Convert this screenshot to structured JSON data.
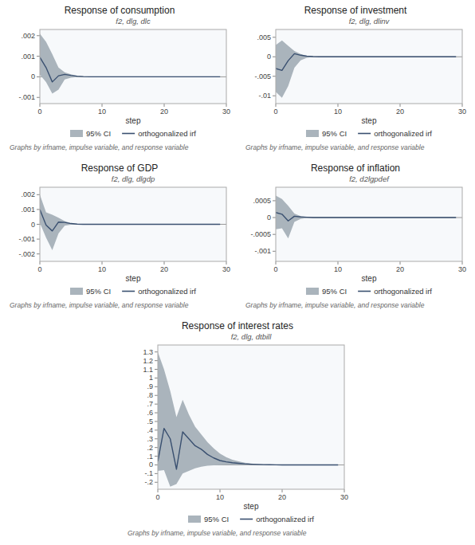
{
  "chart_data": [
    {
      "type": "line",
      "title": "Response of consumption",
      "subtitle": "f2, dlg, dlc",
      "x_label": "step",
      "footer": "Graphs by irfname, impulse variable, and response variable",
      "legend": "bottom",
      "grid": false,
      "x": [
        0,
        1,
        2,
        3,
        4,
        5,
        6,
        7,
        8,
        9,
        10,
        11,
        12,
        13,
        14,
        15,
        16,
        17,
        18,
        19,
        20,
        21,
        22,
        23,
        24,
        25,
        26,
        27,
        28,
        29
      ],
      "xlim": [
        0,
        30
      ],
      "xticks": [
        0,
        10,
        20,
        30
      ],
      "ylim": [
        -0.0013,
        0.0023
      ],
      "yticks": [
        {
          "value": -0.001,
          "label": "-.001"
        },
        0,
        {
          "value": 0.001,
          "label": ".001"
        },
        {
          "value": 0.002,
          "label": ".002"
        }
      ],
      "series": [
        {
          "name": "95% CI",
          "type": "band",
          "color": "#aab4bc",
          "upper": [
            0.0021,
            0.0017,
            0.0011,
            0.00045,
            0.00022,
            0.00012,
            5e-05,
            2e-05,
            1e-05,
            0.0,
            0.0,
            0.0,
            0.0,
            0.0,
            0.0,
            0.0,
            0.0,
            0.0,
            0.0,
            0.0,
            0.0,
            0.0,
            0.0,
            0.0,
            0.0,
            0.0,
            0.0,
            0.0,
            0.0,
            0.0
          ],
          "lower": [
            0.0001,
            -0.00025,
            -0.00082,
            -0.00062,
            -0.00013,
            -4e-05,
            -1e-05,
            0.0,
            0.0,
            0.0,
            0.0,
            0.0,
            0.0,
            0.0,
            0.0,
            0.0,
            0.0,
            0.0,
            0.0,
            0.0,
            0.0,
            0.0,
            0.0,
            0.0,
            0.0,
            0.0,
            0.0,
            0.0,
            0.0,
            0.0
          ]
        },
        {
          "name": "orthogonalized irf",
          "type": "line",
          "color": "#3a5070",
          "values": [
            0.00095,
            0.00045,
            -0.00025,
            5e-05,
            0.00012,
            7e-05,
            3e-05,
            1e-05,
            0.0,
            0.0,
            0.0,
            0.0,
            0.0,
            0.0,
            0.0,
            0.0,
            0.0,
            0.0,
            0.0,
            0.0,
            0.0,
            0.0,
            0.0,
            0.0,
            0.0,
            0.0,
            0.0,
            0.0,
            0.0,
            0.0
          ]
        }
      ]
    },
    {
      "type": "line",
      "title": "Response of investment",
      "subtitle": "f2, dlg, dlinv",
      "x_label": "step",
      "footer": "Graphs by irfname, impulse variable, and response variable",
      "legend": "bottom",
      "grid": false,
      "x": [
        0,
        1,
        2,
        3,
        4,
        5,
        6,
        7,
        8,
        9,
        10,
        11,
        12,
        13,
        14,
        15,
        16,
        17,
        18,
        19,
        20,
        21,
        22,
        23,
        24,
        25,
        26,
        27,
        28,
        29
      ],
      "xlim": [
        0,
        30
      ],
      "xticks": [
        0,
        10,
        20,
        30
      ],
      "ylim": [
        -0.012,
        0.007
      ],
      "yticks": [
        {
          "value": -0.01,
          "label": "-.01"
        },
        {
          "value": -0.005,
          "label": "-.005"
        },
        0,
        {
          "value": 0.005,
          "label": ".005"
        }
      ],
      "series": [
        {
          "name": "95% CI",
          "type": "band",
          "color": "#aab4bc",
          "upper": [
            0.003,
            0.0042,
            0.0028,
            0.0015,
            0.0007,
            0.0002,
            5e-05,
            0.0,
            0.0,
            0.0,
            0.0,
            0.0,
            0.0,
            0.0,
            0.0,
            0.0,
            0.0,
            0.0,
            0.0,
            0.0,
            0.0,
            0.0,
            0.0,
            0.0,
            0.0,
            0.0,
            0.0,
            0.0,
            0.0,
            0.0
          ],
          "lower": [
            -0.009,
            -0.0105,
            -0.0075,
            -0.0028,
            -0.0009,
            -0.00025,
            -5e-05,
            0.0,
            0.0,
            0.0,
            0.0,
            0.0,
            0.0,
            0.0,
            0.0,
            0.0,
            0.0,
            0.0,
            0.0,
            0.0,
            0.0,
            0.0,
            0.0,
            0.0,
            0.0,
            0.0,
            0.0,
            0.0,
            0.0,
            0.0
          ]
        },
        {
          "name": "orthogonalized irf",
          "type": "line",
          "color": "#3a5070",
          "values": [
            -0.003,
            -0.0035,
            -0.001,
            0.0008,
            0.0004,
            0.00015,
            5e-05,
            0.0,
            0.0,
            0.0,
            0.0,
            0.0,
            0.0,
            0.0,
            0.0,
            0.0,
            0.0,
            0.0,
            0.0,
            0.0,
            0.0,
            0.0,
            0.0,
            0.0,
            0.0,
            0.0,
            0.0,
            0.0,
            0.0,
            0.0
          ]
        }
      ]
    },
    {
      "type": "line",
      "title": "Response of GDP",
      "subtitle": "f2, dlg, dlgdp",
      "x_label": "step",
      "footer": "Graphs by irfname, impulse variable, and response variable",
      "legend": "bottom",
      "grid": false,
      "x": [
        0,
        1,
        2,
        3,
        4,
        5,
        6,
        7,
        8,
        9,
        10,
        11,
        12,
        13,
        14,
        15,
        16,
        17,
        18,
        19,
        20,
        21,
        22,
        23,
        24,
        25,
        26,
        27,
        28,
        29
      ],
      "xlim": [
        0,
        30
      ],
      "xticks": [
        0,
        10,
        20,
        30
      ],
      "ylim": [
        -0.0025,
        0.0025
      ],
      "yticks": [
        {
          "value": -0.002,
          "label": "-.002"
        },
        {
          "value": -0.001,
          "label": "-.001"
        },
        0,
        {
          "value": 0.001,
          "label": ".001"
        },
        {
          "value": 0.002,
          "label": ".002"
        }
      ],
      "series": [
        {
          "name": "95% CI",
          "type": "band",
          "color": "#aab4bc",
          "upper": [
            0.002,
            0.0008,
            0.00065,
            0.00045,
            0.00022,
            8e-05,
            2e-05,
            0.0,
            0.0,
            0.0,
            0.0,
            0.0,
            0.0,
            0.0,
            0.0,
            0.0,
            0.0,
            0.0,
            0.0,
            0.0,
            0.0,
            0.0,
            0.0,
            0.0,
            0.0,
            0.0,
            0.0,
            0.0,
            0.0,
            0.0
          ],
          "lower": [
            0.0001,
            -0.0009,
            -0.00175,
            -0.00062,
            -0.0001,
            -3e-05,
            -1e-05,
            0.0,
            0.0,
            0.0,
            0.0,
            0.0,
            0.0,
            0.0,
            0.0,
            0.0,
            0.0,
            0.0,
            0.0,
            0.0,
            0.0,
            0.0,
            0.0,
            0.0,
            0.0,
            0.0,
            0.0,
            0.0,
            0.0,
            0.0
          ]
        },
        {
          "name": "orthogonalized irf",
          "type": "line",
          "color": "#3a5070",
          "values": [
            0.001,
            -5e-05,
            -0.00045,
            0.00015,
            0.00013,
            5e-05,
            1e-05,
            0.0,
            0.0,
            0.0,
            0.0,
            0.0,
            0.0,
            0.0,
            0.0,
            0.0,
            0.0,
            0.0,
            0.0,
            0.0,
            0.0,
            0.0,
            0.0,
            0.0,
            0.0,
            0.0,
            0.0,
            0.0,
            0.0,
            0.0
          ]
        }
      ]
    },
    {
      "type": "line",
      "title": "Response of inflation",
      "subtitle": "f2, d2lgpdef",
      "x_label": "step",
      "footer": "Graphs by irfname, impulse variable, and response variable",
      "legend": "bottom",
      "grid": false,
      "x": [
        0,
        1,
        2,
        3,
        4,
        5,
        6,
        7,
        8,
        9,
        10,
        11,
        12,
        13,
        14,
        15,
        16,
        17,
        18,
        19,
        20,
        21,
        22,
        23,
        24,
        25,
        26,
        27,
        28,
        29
      ],
      "xlim": [
        0,
        30
      ],
      "xticks": [
        0,
        10,
        20,
        30
      ],
      "ylim": [
        -0.0013,
        0.0009
      ],
      "yticks": [
        {
          "value": -0.001,
          "label": "-.001"
        },
        {
          "value": -0.0005,
          "label": "-.0005"
        },
        0,
        {
          "value": 0.0005,
          "label": ".0005"
        }
      ],
      "series": [
        {
          "name": "95% CI",
          "type": "band",
          "color": "#aab4bc",
          "upper": [
            0.00065,
            0.00055,
            0.00035,
            0.00012,
            4e-05,
            1e-05,
            0.0,
            0.0,
            0.0,
            0.0,
            0.0,
            0.0,
            0.0,
            0.0,
            0.0,
            0.0,
            0.0,
            0.0,
            0.0,
            0.0,
            0.0,
            0.0,
            0.0,
            0.0,
            0.0,
            0.0,
            0.0,
            0.0,
            0.0,
            0.0
          ],
          "lower": [
            -0.00035,
            -0.00032,
            -0.00062,
            -0.00013,
            -4e-05,
            -1e-05,
            0.0,
            0.0,
            0.0,
            0.0,
            0.0,
            0.0,
            0.0,
            0.0,
            0.0,
            0.0,
            0.0,
            0.0,
            0.0,
            0.0,
            0.0,
            0.0,
            0.0,
            0.0,
            0.0,
            0.0,
            0.0,
            0.0,
            0.0,
            0.0
          ]
        },
        {
          "name": "orthogonalized irf",
          "type": "line",
          "color": "#3a5070",
          "values": [
            0.00015,
            0.0001,
            -0.0001,
            4e-05,
            2e-05,
            1e-05,
            0.0,
            0.0,
            0.0,
            0.0,
            0.0,
            0.0,
            0.0,
            0.0,
            0.0,
            0.0,
            0.0,
            0.0,
            0.0,
            0.0,
            0.0,
            0.0,
            0.0,
            0.0,
            0.0,
            0.0,
            0.0,
            0.0,
            0.0,
            0.0
          ]
        }
      ]
    },
    {
      "type": "line",
      "title": "Response of interest rates",
      "subtitle": "f2, dlg, dtbill",
      "x_label": "step",
      "footer": "Graphs by irfname, impulse variable, and response variable",
      "legend": "bottom",
      "grid": false,
      "x": [
        0,
        1,
        2,
        3,
        4,
        5,
        6,
        7,
        8,
        9,
        10,
        11,
        12,
        13,
        14,
        15,
        16,
        17,
        18,
        19,
        20,
        21,
        22,
        23,
        24,
        25,
        26,
        27,
        28,
        29
      ],
      "xlim": [
        0,
        30
      ],
      "xticks": [
        0,
        10,
        20,
        30
      ],
      "ylim": [
        -0.28,
        1.38
      ],
      "yticks": [
        {
          "value": -0.2,
          "label": "-.2"
        },
        {
          "value": -0.1,
          "label": "-.1"
        },
        0,
        {
          "value": 0.1,
          "label": ".1"
        },
        {
          "value": 0.2,
          "label": ".2"
        },
        {
          "value": 0.3,
          "label": ".3"
        },
        {
          "value": 0.4,
          "label": ".4"
        },
        {
          "value": 0.5,
          "label": ".5"
        },
        {
          "value": 0.6,
          "label": ".6"
        },
        {
          "value": 0.7,
          "label": ".7"
        },
        {
          "value": 0.8,
          "label": ".8"
        },
        {
          "value": 0.9,
          "label": ".9"
        },
        1,
        1.1,
        1.2,
        1.3
      ],
      "series": [
        {
          "name": "95% CI",
          "type": "band",
          "color": "#aab4bc",
          "upper": [
            1.3,
            1.1,
            0.85,
            0.55,
            0.75,
            0.58,
            0.44,
            0.35,
            0.26,
            0.19,
            0.13,
            0.09,
            0.06,
            0.04,
            0.025,
            0.015,
            0.008,
            0.004,
            0.002,
            0.001,
            0.0,
            0.0,
            0.0,
            0.0,
            0.0,
            0.0,
            0.0,
            0.0,
            0.0,
            0.0
          ],
          "lower": [
            -0.07,
            -0.06,
            -0.25,
            -0.22,
            -0.1,
            -0.07,
            -0.04,
            -0.02,
            -0.01,
            -0.005,
            -0.002,
            -0.001,
            0.0,
            0.0,
            0.0,
            0.0,
            0.0,
            0.0,
            0.0,
            0.0,
            0.0,
            0.0,
            0.0,
            0.0,
            0.0,
            0.0,
            0.0,
            0.0,
            0.0,
            0.0
          ]
        },
        {
          "name": "orthogonalized irf",
          "type": "line",
          "color": "#3a5070",
          "values": [
            0.04,
            0.42,
            0.3,
            -0.05,
            0.38,
            0.3,
            0.22,
            0.18,
            0.12,
            0.08,
            0.05,
            0.035,
            0.025,
            0.018,
            0.012,
            0.008,
            0.005,
            0.003,
            0.002,
            0.001,
            0.0,
            0.0,
            0.0,
            0.0,
            0.0,
            0.0,
            0.0,
            0.0,
            0.0,
            0.0
          ]
        }
      ]
    }
  ]
}
